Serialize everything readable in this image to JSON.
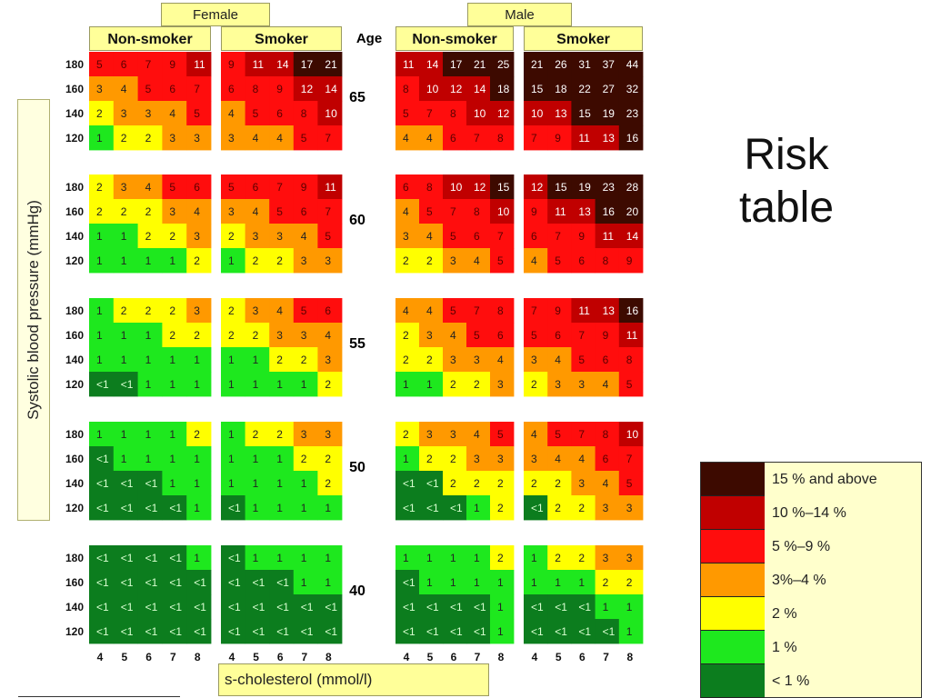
{
  "header": {
    "female": "Female",
    "male": "Male",
    "non_smoker": "Non-smoker",
    "smoker": "Smoker",
    "age": "Age"
  },
  "y_axis_label": "Systolic blood pressure (mmHg)",
  "x_axis_label": "s-cholesterol (mmol/l)",
  "side_title_line1": "Risk",
  "side_title_line2": "table",
  "colors": {
    "lt1": "#0c7d1e",
    "p1": "#1ee81e",
    "p2": "#ffff00",
    "p3_4": "#ff9900",
    "p5_9": "#ff0d0d",
    "p10_14": "#c00000",
    "p15": "#3d0a00"
  },
  "legend": [
    {
      "label": "15 % and above",
      "color": "#3d0a00"
    },
    {
      "label": "10 %–14 %",
      "color": "#c00000"
    },
    {
      "label": "5 %–9 %",
      "color": "#ff0d0d"
    },
    {
      "label": "3%–4 %",
      "color": "#ff9900"
    },
    {
      "label": "2 %",
      "color": "#ffff00"
    },
    {
      "label": "1 %",
      "color": "#1ee81e"
    },
    {
      "label": "< 1 %",
      "color": "#0c7d1e"
    }
  ],
  "chart_data": {
    "type": "heatmap",
    "title": "",
    "xlabel": "s-cholesterol (mmol/l)",
    "ylabel": "Systolic blood pressure (mmHg)",
    "cholesterol_levels": [
      "4",
      "5",
      "6",
      "7",
      "8"
    ],
    "sbp_levels": [
      "180",
      "160",
      "140",
      "120"
    ],
    "ages": [
      "65",
      "60",
      "55",
      "50",
      "40"
    ],
    "groups": [
      "Female Non-smoker",
      "Female Smoker",
      "Male Non-smoker",
      "Male Smoker"
    ],
    "panels": [
      {
        "age": "65",
        "female_non_smoker": [
          [
            "5",
            "6",
            "7",
            "9",
            "11"
          ],
          [
            "3",
            "4",
            "5",
            "6",
            "7"
          ],
          [
            "2",
            "3",
            "3",
            "4",
            "5"
          ],
          [
            "1",
            "2",
            "2",
            "3",
            "3"
          ]
        ],
        "female_smoker": [
          [
            "9",
            "11",
            "14",
            "17",
            "21"
          ],
          [
            "6",
            "8",
            "9",
            "12",
            "14"
          ],
          [
            "4",
            "5",
            "6",
            "8",
            "10"
          ],
          [
            "3",
            "4",
            "4",
            "5",
            "7"
          ]
        ],
        "male_non_smoker": [
          [
            "11",
            "14",
            "17",
            "21",
            "25"
          ],
          [
            "8",
            "10",
            "12",
            "14",
            "18"
          ],
          [
            "5",
            "7",
            "8",
            "10",
            "12"
          ],
          [
            "4",
            "4",
            "6",
            "7",
            "8"
          ]
        ],
        "male_smoker": [
          [
            "21",
            "26",
            "31",
            "37",
            "44"
          ],
          [
            "15",
            "18",
            "22",
            "27",
            "32"
          ],
          [
            "10",
            "13",
            "15",
            "19",
            "23"
          ],
          [
            "7",
            "9",
            "11",
            "13",
            "16"
          ]
        ]
      },
      {
        "age": "60",
        "female_non_smoker": [
          [
            "2",
            "3",
            "4",
            "5",
            "6"
          ],
          [
            "2",
            "2",
            "2",
            "3",
            "4"
          ],
          [
            "1",
            "1",
            "2",
            "2",
            "3"
          ],
          [
            "1",
            "1",
            "1",
            "1",
            "2"
          ]
        ],
        "female_smoker": [
          [
            "5",
            "6",
            "7",
            "9",
            "11"
          ],
          [
            "3",
            "4",
            "5",
            "6",
            "7"
          ],
          [
            "2",
            "3",
            "3",
            "4",
            "5"
          ],
          [
            "1",
            "2",
            "2",
            "3",
            "3"
          ]
        ],
        "male_non_smoker": [
          [
            "6",
            "8",
            "10",
            "12",
            "15"
          ],
          [
            "4",
            "5",
            "7",
            "8",
            "10"
          ],
          [
            "3",
            "4",
            "5",
            "6",
            "7"
          ],
          [
            "2",
            "2",
            "3",
            "4",
            "5"
          ]
        ],
        "male_smoker": [
          [
            "12",
            "15",
            "19",
            "23",
            "28"
          ],
          [
            "9",
            "11",
            "13",
            "16",
            "20"
          ],
          [
            "6",
            "7",
            "9",
            "11",
            "14"
          ],
          [
            "4",
            "5",
            "6",
            "8",
            "9"
          ]
        ]
      },
      {
        "age": "55",
        "female_non_smoker": [
          [
            "1",
            "2",
            "2",
            "2",
            "3"
          ],
          [
            "1",
            "1",
            "1",
            "2",
            "2"
          ],
          [
            "1",
            "1",
            "1",
            "1",
            "1"
          ],
          [
            "<1",
            "<1",
            "1",
            "1",
            "1"
          ]
        ],
        "female_smoker": [
          [
            "2",
            "3",
            "4",
            "5",
            "6"
          ],
          [
            "2",
            "2",
            "3",
            "3",
            "4"
          ],
          [
            "1",
            "1",
            "2",
            "2",
            "3"
          ],
          [
            "1",
            "1",
            "1",
            "1",
            "2"
          ]
        ],
        "male_non_smoker": [
          [
            "4",
            "4",
            "5",
            "7",
            "8"
          ],
          [
            "2",
            "3",
            "4",
            "5",
            "6"
          ],
          [
            "2",
            "2",
            "3",
            "3",
            "4"
          ],
          [
            "1",
            "1",
            "2",
            "2",
            "3"
          ]
        ],
        "male_smoker": [
          [
            "7",
            "9",
            "11",
            "13",
            "16"
          ],
          [
            "5",
            "6",
            "7",
            "9",
            "11"
          ],
          [
            "3",
            "4",
            "5",
            "6",
            "8"
          ],
          [
            "2",
            "3",
            "3",
            "4",
            "5"
          ]
        ]
      },
      {
        "age": "50",
        "female_non_smoker": [
          [
            "1",
            "1",
            "1",
            "1",
            "2"
          ],
          [
            "<1",
            "1",
            "1",
            "1",
            "1"
          ],
          [
            "<1",
            "<1",
            "<1",
            "1",
            "1"
          ],
          [
            "<1",
            "<1",
            "<1",
            "<1",
            "1"
          ]
        ],
        "female_smoker": [
          [
            "1",
            "2",
            "2",
            "3",
            "3"
          ],
          [
            "1",
            "1",
            "1",
            "2",
            "2"
          ],
          [
            "1",
            "1",
            "1",
            "1",
            "2"
          ],
          [
            "<1",
            "1",
            "1",
            "1",
            "1"
          ]
        ],
        "male_non_smoker": [
          [
            "2",
            "3",
            "3",
            "4",
            "5"
          ],
          [
            "1",
            "2",
            "2",
            "3",
            "3"
          ],
          [
            "<1",
            "<1",
            "2",
            "2",
            "2"
          ],
          [
            "<1",
            "<1",
            "<1",
            "1",
            "2"
          ]
        ],
        "male_smoker": [
          [
            "4",
            "5",
            "7",
            "8",
            "10"
          ],
          [
            "3",
            "4",
            "4",
            "6",
            "7"
          ],
          [
            "2",
            "2",
            "3",
            "4",
            "5"
          ],
          [
            "<1",
            "2",
            "2",
            "3",
            "3"
          ]
        ]
      },
      {
        "age": "40",
        "female_non_smoker": [
          [
            "<1",
            "<1",
            "<1",
            "<1",
            "1"
          ],
          [
            "<1",
            "<1",
            "<1",
            "<1",
            "<1"
          ],
          [
            "<1",
            "<1",
            "<1",
            "<1",
            "<1"
          ],
          [
            "<1",
            "<1",
            "<1",
            "<1",
            "<1"
          ]
        ],
        "female_smoker": [
          [
            "<1",
            "1",
            "1",
            "1",
            "1"
          ],
          [
            "<1",
            "<1",
            "<1",
            "1",
            "1"
          ],
          [
            "<1",
            "<1",
            "<1",
            "<1",
            "<1"
          ],
          [
            "<1",
            "<1",
            "<1",
            "<1",
            "<1"
          ]
        ],
        "male_non_smoker": [
          [
            "1",
            "1",
            "1",
            "1",
            "2"
          ],
          [
            "<1",
            "1",
            "1",
            "1",
            "1"
          ],
          [
            "<1",
            "<1",
            "<1",
            "<1",
            "1"
          ],
          [
            "<1",
            "<1",
            "<1",
            "<1",
            "1"
          ]
        ],
        "male_smoker": [
          [
            "1",
            "2",
            "2",
            "3",
            "3"
          ],
          [
            "1",
            "1",
            "1",
            "2",
            "2"
          ],
          [
            "<1",
            "<1",
            "<1",
            "1",
            "1"
          ],
          [
            "<1",
            "<1",
            "<1",
            "<1",
            "1"
          ]
        ]
      }
    ],
    "legend_placement": "bottom-right"
  }
}
